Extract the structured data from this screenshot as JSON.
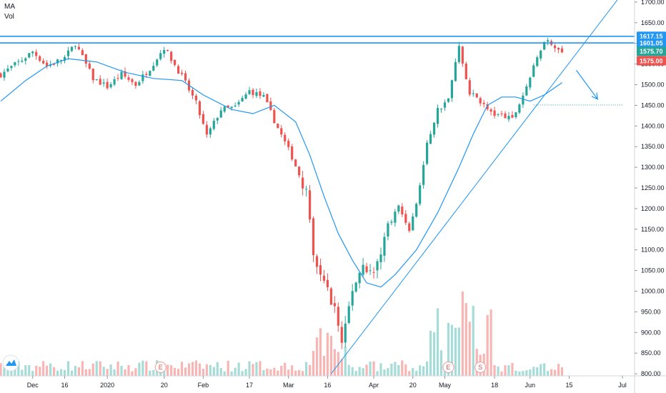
{
  "legend": {
    "ma": "MA",
    "vol": "Vol"
  },
  "chart_data": {
    "type": "candlestick",
    "y_ticks": [
      1700,
      1650,
      1600,
      1550,
      1500,
      1450,
      1400,
      1350,
      1300,
      1250,
      1200,
      1150,
      1100,
      1050,
      1000,
      950,
      900,
      850,
      800
    ],
    "y_tick_labels": [
      "1700.00",
      "1650.00",
      "1600.00",
      "1550.00",
      "1500.00",
      "1450.00",
      "1400.00",
      "1350.00",
      "1300.00",
      "1250.00",
      "1200.00",
      "1150.00",
      "1100.00",
      "1050.00",
      "1000.00",
      "950.00",
      "900.00",
      "850.00",
      "800.00"
    ],
    "ylim": [
      795,
      1705
    ],
    "x_labels": [
      {
        "label": "Dec",
        "t": 10
      },
      {
        "label": "16",
        "t": 19
      },
      {
        "label": "2020",
        "t": 31
      },
      {
        "label": "20",
        "t": 47
      },
      {
        "label": "Feb",
        "t": 58
      },
      {
        "label": "17",
        "t": 71
      },
      {
        "label": "Mar",
        "t": 82
      },
      {
        "label": "16",
        "t": 93
      },
      {
        "label": "Apr",
        "t": 106
      },
      {
        "label": "20",
        "t": 117
      },
      {
        "label": "May",
        "t": 126
      },
      {
        "label": "18",
        "t": 140
      },
      {
        "label": "Jun",
        "t": 150
      },
      {
        "label": "15",
        "t": 161
      },
      {
        "label": "Jul",
        "t": 176
      }
    ],
    "t_range": [
      1,
      178
    ],
    "price_keypoints": [
      [
        1,
        1525
      ],
      [
        7,
        1560
      ],
      [
        10,
        1580
      ],
      [
        14,
        1545
      ],
      [
        19,
        1565
      ],
      [
        22,
        1600
      ],
      [
        27,
        1515
      ],
      [
        31,
        1495
      ],
      [
        35,
        1525
      ],
      [
        39,
        1500
      ],
      [
        43,
        1540
      ],
      [
        47,
        1590
      ],
      [
        52,
        1520
      ],
      [
        56,
        1455
      ],
      [
        59,
        1375
      ],
      [
        63,
        1440
      ],
      [
        67,
        1445
      ],
      [
        71,
        1485
      ],
      [
        75,
        1470
      ],
      [
        79,
        1395
      ],
      [
        83,
        1325
      ],
      [
        87,
        1240
      ],
      [
        89,
        1080
      ],
      [
        92,
        1020
      ],
      [
        95,
        960
      ],
      [
        97,
        875
      ],
      [
        100,
        1005
      ],
      [
        103,
        1065
      ],
      [
        106,
        1040
      ],
      [
        110,
        1160
      ],
      [
        113,
        1205
      ],
      [
        116,
        1150
      ],
      [
        118,
        1210
      ],
      [
        121,
        1355
      ],
      [
        124,
        1440
      ],
      [
        127,
        1465
      ],
      [
        130,
        1595
      ],
      [
        133,
        1480
      ],
      [
        136,
        1460
      ],
      [
        139,
        1430
      ],
      [
        142,
        1425
      ],
      [
        145,
        1415
      ],
      [
        148,
        1475
      ],
      [
        151,
        1540
      ],
      [
        154,
        1610
      ],
      [
        157,
        1595
      ],
      [
        159,
        1575
      ]
    ],
    "ma_keypoints": [
      [
        1,
        1460
      ],
      [
        8,
        1510
      ],
      [
        14,
        1545
      ],
      [
        20,
        1563
      ],
      [
        28,
        1555
      ],
      [
        36,
        1530
      ],
      [
        44,
        1515
      ],
      [
        52,
        1510
      ],
      [
        58,
        1475
      ],
      [
        66,
        1440
      ],
      [
        72,
        1430
      ],
      [
        78,
        1450
      ],
      [
        84,
        1410
      ],
      [
        88,
        1330
      ],
      [
        92,
        1230
      ],
      [
        96,
        1140
      ],
      [
        100,
        1075
      ],
      [
        104,
        1020
      ],
      [
        108,
        1010
      ],
      [
        112,
        1040
      ],
      [
        118,
        1100
      ],
      [
        124,
        1190
      ],
      [
        130,
        1300
      ],
      [
        134,
        1380
      ],
      [
        138,
        1450
      ],
      [
        142,
        1470
      ],
      [
        146,
        1470
      ],
      [
        150,
        1460
      ],
      [
        154,
        1475
      ],
      [
        159,
        1505
      ]
    ],
    "horizontal_levels": [
      {
        "value": 1617.15,
        "label": "1617.15",
        "color": "#2196f3"
      },
      {
        "value": 1601.05,
        "label": "1601.05",
        "color": "#2196f3"
      }
    ],
    "price_tags": [
      {
        "value": 1575.7,
        "label": "1575.70",
        "color": "#26a69a"
      },
      {
        "value": 1575.0,
        "label": "1575.00",
        "color": "#ef5350"
      }
    ],
    "trend_line": {
      "from": {
        "t": 94,
        "v": 800
      },
      "to": {
        "t": 175,
        "v": 1710
      }
    },
    "dotted_level": {
      "value": 1451,
      "t_from": 151,
      "t_to": 176
    },
    "arrow": {
      "from": {
        "t": 163,
        "v": 1535
      },
      "to": {
        "t": 169,
        "v": 1465
      }
    },
    "event_markers": [
      {
        "label": "E",
        "t": 46
      },
      {
        "label": "E",
        "t": 127
      },
      {
        "label": "S",
        "t": 136
      }
    ],
    "colors": {
      "up": "#26a69a",
      "down": "#ef5350",
      "ma": "#2196f3",
      "level": "#2196f3",
      "vol_up": "#a6dcd7",
      "vol_down": "#f7b5b3",
      "grid_axis": "#9598a1"
    }
  }
}
